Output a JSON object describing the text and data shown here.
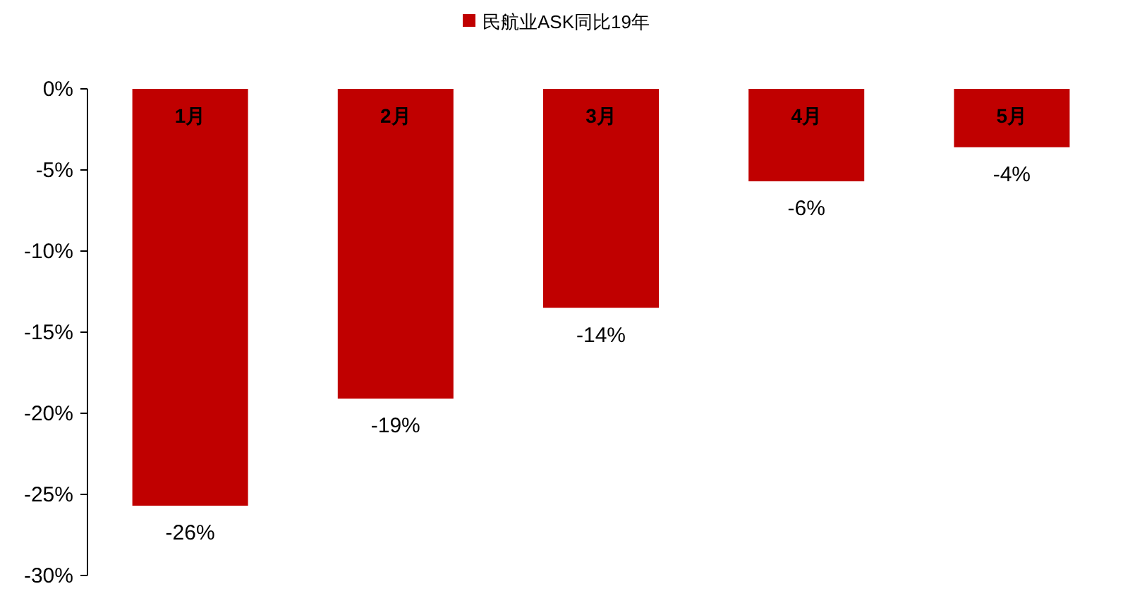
{
  "chart_data": {
    "type": "bar",
    "series": [
      {
        "name": "民航业ASK同比19年",
        "color": "#c00000",
        "values": [
          -25.7,
          -19.1,
          -13.5,
          -5.7,
          -3.6
        ],
        "value_labels": [
          "-26%",
          "-19%",
          "-14%",
          "-6%",
          "-4%"
        ]
      }
    ],
    "categories": [
      "1月",
      "2月",
      "3月",
      "4月",
      "5月"
    ],
    "ylim": [
      -30,
      0
    ],
    "yticks": [
      {
        "value": 0,
        "label": "0%"
      },
      {
        "value": -5,
        "label": "-5%"
      },
      {
        "value": -10,
        "label": "-10%"
      },
      {
        "value": -15,
        "label": "-15%"
      },
      {
        "value": -20,
        "label": "-20%"
      },
      {
        "value": -25,
        "label": "-25%"
      },
      {
        "value": -30,
        "label": "-30%"
      }
    ],
    "legend": "top",
    "grid": false
  }
}
